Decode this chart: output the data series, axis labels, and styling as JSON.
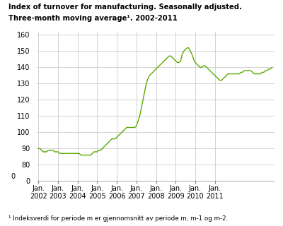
{
  "title_line1": "Index of turnover for manufacturing. Seasonally adjusted.",
  "title_line2": "Three-month moving average¹. 2002-2011",
  "footnote": "¹ Indeksverdi for periode m er gjennomsnitt av periode m, m-1 og m-2.",
  "line_color": "#5aaa00",
  "background_color": "#ffffff",
  "grid_color": "#cccccc",
  "ylim_main": [
    75,
    162
  ],
  "ylim_break": [
    0,
    5
  ],
  "yticks": [
    80,
    90,
    100,
    110,
    120,
    130,
    140,
    150,
    160
  ],
  "xlabel_years": [
    "Jan.\n2002",
    "Jan.\n2003",
    "Jan.\n2004",
    "Jan.\n2005",
    "Jan.\n2006",
    "Jan.\n2007",
    "Jan.\n2008",
    "Jan.\n2009",
    "Jan.\n2010",
    "Jan.\n2011"
  ],
  "data_y": [
    90,
    90,
    89,
    88,
    88,
    88,
    89,
    89,
    89,
    89,
    88,
    88,
    88,
    87,
    87,
    87,
    87,
    87,
    87,
    87,
    87,
    87,
    87,
    87,
    87,
    87,
    86,
    86,
    86,
    86,
    86,
    86,
    86,
    87,
    88,
    88,
    88,
    89,
    89,
    90,
    91,
    92,
    93,
    94,
    95,
    96,
    96,
    96,
    97,
    98,
    99,
    100,
    101,
    102,
    103,
    103,
    103,
    103,
    103,
    103,
    104,
    107,
    110,
    115,
    120,
    125,
    130,
    133,
    135,
    136,
    137,
    138,
    139,
    140,
    141,
    142,
    143,
    144,
    145,
    146,
    147,
    147,
    146,
    145,
    144,
    143,
    143,
    144,
    148,
    150,
    151,
    152,
    152,
    150,
    148,
    145,
    143,
    142,
    141,
    140,
    140,
    141,
    141,
    140,
    139,
    138,
    137,
    136,
    135,
    134,
    133,
    132,
    132,
    133,
    134,
    135,
    136,
    136,
    136,
    136,
    136,
    136,
    136,
    136,
    137,
    137,
    138,
    138,
    138,
    138,
    138,
    137,
    136,
    136,
    136,
    136,
    136,
    137,
    137,
    138,
    138,
    139,
    139,
    140
  ]
}
